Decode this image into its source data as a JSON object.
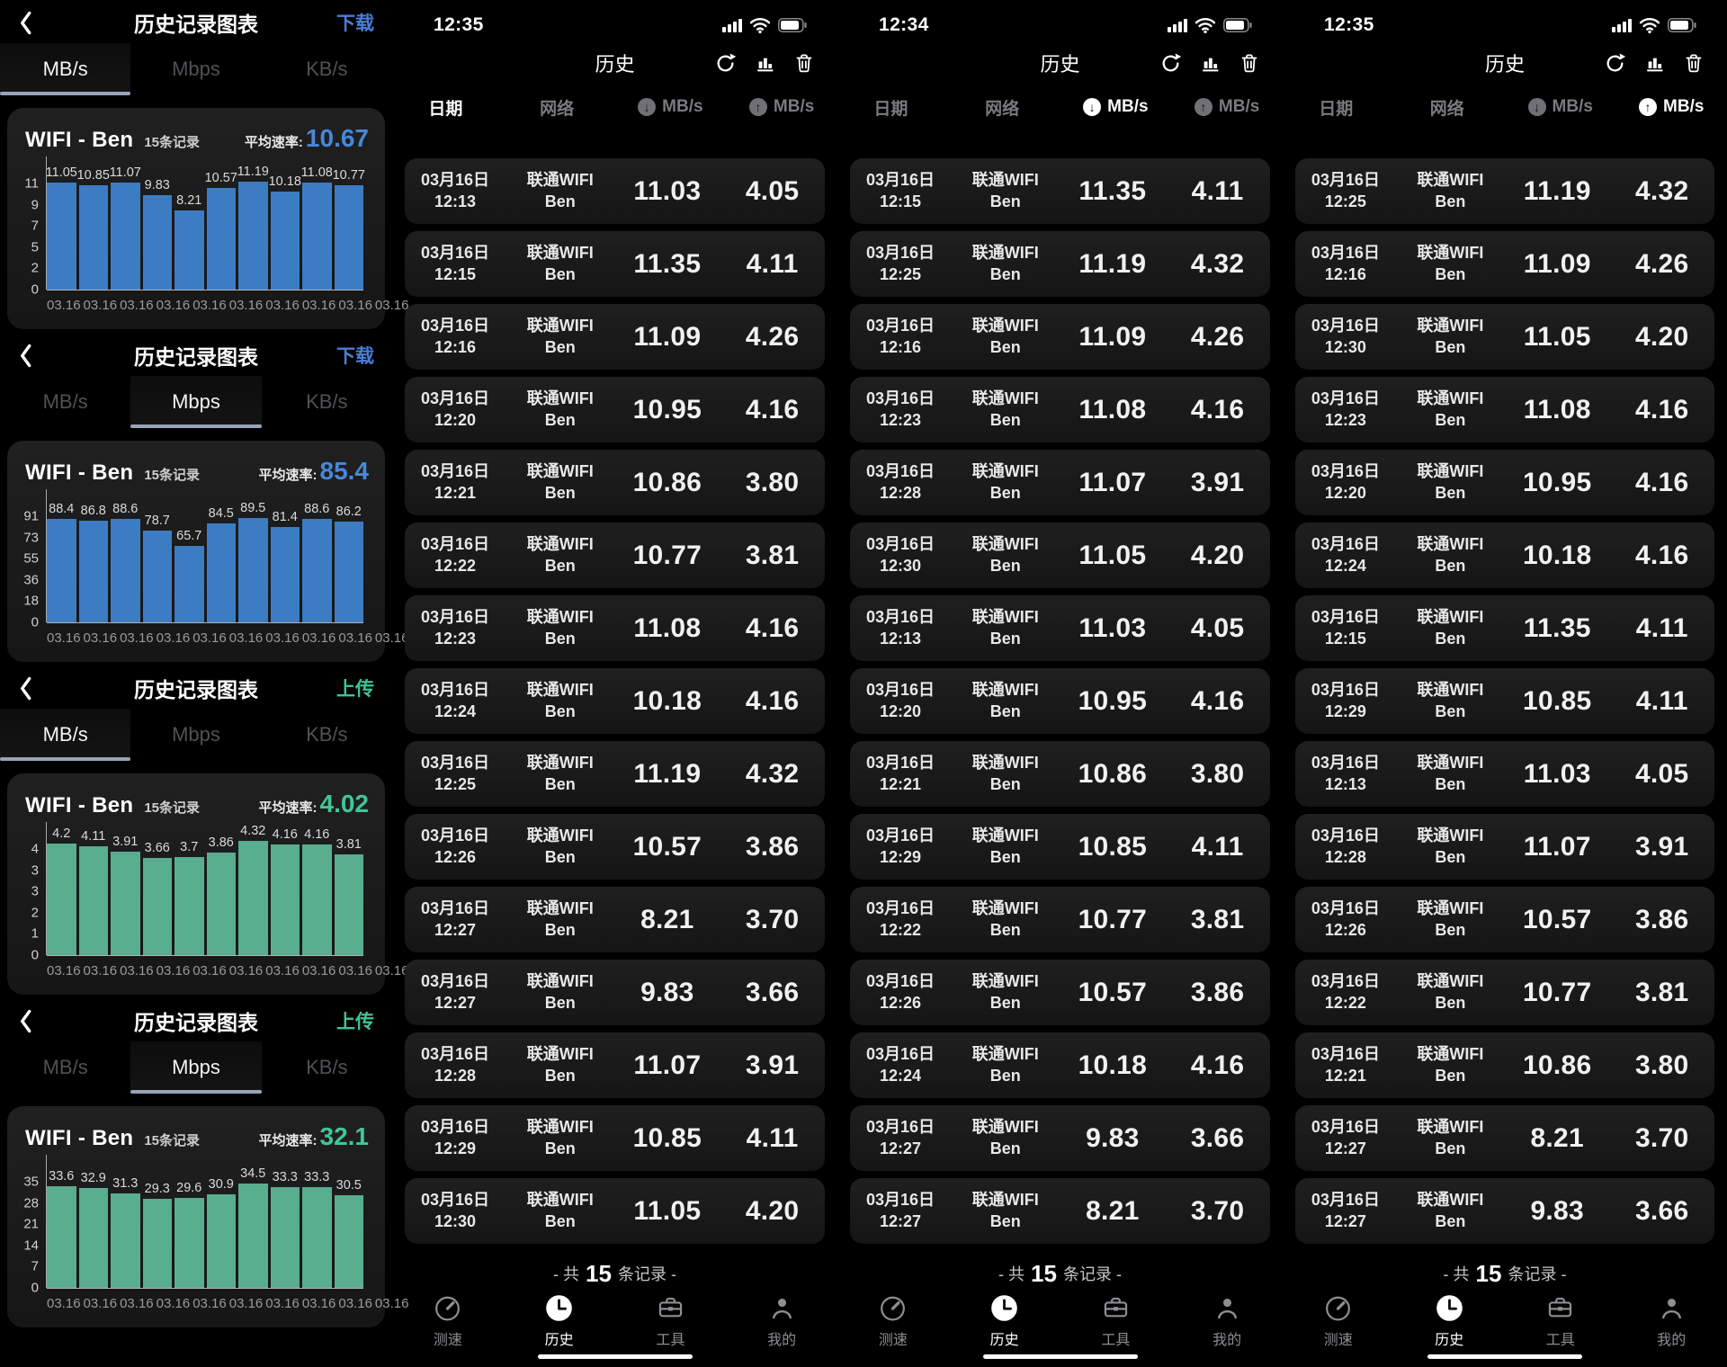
{
  "colors": {
    "bar_blue": "#3c7cc3",
    "bar_green": "#58ae8d",
    "link_blue": "#4b7fd9",
    "link_green": "#3fc393",
    "tab_underline": "#97a3b8",
    "background": "#000000"
  },
  "charts": [
    {
      "title": "历史记录图表",
      "link": "下载",
      "theme": "blue",
      "tabs": [
        "MB/s",
        "Mbps",
        "KB/s"
      ],
      "active_tab": "MB/s",
      "network": "WIFI - Ben",
      "records": "15条记录",
      "avg_label": "平均速率:",
      "avg": "10.67",
      "yticks": [
        "11",
        "9",
        "7",
        "5",
        "2",
        "0"
      ],
      "ymax": 11,
      "values": [
        11.05,
        10.85,
        11.07,
        9.83,
        8.21,
        10.57,
        11.19,
        10.18,
        11.08,
        10.77
      ],
      "labels": [
        "11.05",
        "10.85",
        "11.07",
        "9.83",
        "8.21",
        "10.57",
        "11.19",
        "10.18",
        "11.08",
        "10.77"
      ],
      "xlabels": [
        "03.16",
        "03.16",
        "03.16",
        "03.16",
        "03.16",
        "03.16",
        "03.16",
        "03.16",
        "03.16",
        "03.16"
      ]
    },
    {
      "title": "历史记录图表",
      "link": "下载",
      "theme": "blue",
      "tabs": [
        "MB/s",
        "Mbps",
        "KB/s"
      ],
      "active_tab": "Mbps",
      "network": "WIFI - Ben",
      "records": "15条记录",
      "avg_label": "平均速率:",
      "avg": "85.4",
      "yticks": [
        "91",
        "73",
        "55",
        "36",
        "18",
        "0"
      ],
      "ymax": 91,
      "values": [
        88.4,
        86.8,
        88.6,
        78.7,
        65.7,
        84.5,
        89.5,
        81.4,
        88.6,
        86.2
      ],
      "labels": [
        "88.4",
        "86.8",
        "88.6",
        "78.7",
        "65.7",
        "84.5",
        "89.5",
        "81.4",
        "88.6",
        "86.2"
      ],
      "xlabels": [
        "03.16",
        "03.16",
        "03.16",
        "03.16",
        "03.16",
        "03.16",
        "03.16",
        "03.16",
        "03.16",
        "03.16"
      ]
    },
    {
      "title": "历史记录图表",
      "link": "上传",
      "theme": "green",
      "tabs": [
        "MB/s",
        "Mbps",
        "KB/s"
      ],
      "active_tab": "MB/s",
      "network": "WIFI - Ben",
      "records": "15条记录",
      "avg_label": "平均速率:",
      "avg": "4.02",
      "yticks": [
        "4",
        "3",
        "3",
        "2",
        "1",
        "0"
      ],
      "ymax": 4,
      "values": [
        4.2,
        4.11,
        3.91,
        3.66,
        3.7,
        3.86,
        4.32,
        4.16,
        4.16,
        3.81
      ],
      "labels": [
        "4.2",
        "4.11",
        "3.91",
        "3.66",
        "3.7",
        "3.86",
        "4.32",
        "4.16",
        "4.16",
        "3.81"
      ],
      "xlabels": [
        "03.16",
        "03.16",
        "03.16",
        "03.16",
        "03.16",
        "03.16",
        "03.16",
        "03.16",
        "03.16",
        "03.16"
      ]
    },
    {
      "title": "历史记录图表",
      "link": "上传",
      "theme": "green",
      "tabs": [
        "MB/s",
        "Mbps",
        "KB/s"
      ],
      "active_tab": "Mbps",
      "network": "WIFI - Ben",
      "records": "15条记录",
      "avg_label": "平均速率:",
      "avg": "32.1",
      "yticks": [
        "35",
        "28",
        "21",
        "14",
        "7",
        "0"
      ],
      "ymax": 35,
      "values": [
        33.6,
        32.9,
        31.3,
        29.3,
        29.6,
        30.9,
        34.5,
        33.3,
        33.3,
        30.5
      ],
      "labels": [
        "33.6",
        "32.9",
        "31.3",
        "29.3",
        "29.6",
        "30.9",
        "34.5",
        "33.3",
        "33.3",
        "30.5"
      ],
      "xlabels": [
        "03.16",
        "03.16",
        "03.16",
        "03.16",
        "03.16",
        "03.16",
        "03.16",
        "03.16",
        "03.16",
        "03.16"
      ]
    }
  ],
  "panel_common": {
    "nav_title": "历史",
    "columns": {
      "date": "日期",
      "network": "网络",
      "down": "MB/s",
      "up": "MB/s"
    },
    "row_date": "03月16日",
    "net_line1": "联通WIFI",
    "net_line2": "Ben",
    "footer": {
      "prefix": "- 共",
      "count": "15",
      "suffix": "条记录 -"
    },
    "tabbar": [
      {
        "label": "测速",
        "icon": "speedometer-icon",
        "active": false
      },
      {
        "label": "历史",
        "icon": "clock-icon",
        "active": true
      },
      {
        "label": "工具",
        "icon": "briefcase-icon",
        "active": false
      },
      {
        "label": "我的",
        "icon": "person-icon",
        "active": false
      }
    ]
  },
  "panels": [
    {
      "time": "12:35",
      "sorted_by": "date",
      "rows": [
        [
          "12:13",
          "11.03",
          "4.05"
        ],
        [
          "12:15",
          "11.35",
          "4.11"
        ],
        [
          "12:16",
          "11.09",
          "4.26"
        ],
        [
          "12:20",
          "10.95",
          "4.16"
        ],
        [
          "12:21",
          "10.86",
          "3.80"
        ],
        [
          "12:22",
          "10.77",
          "3.81"
        ],
        [
          "12:23",
          "11.08",
          "4.16"
        ],
        [
          "12:24",
          "10.18",
          "4.16"
        ],
        [
          "12:25",
          "11.19",
          "4.32"
        ],
        [
          "12:26",
          "10.57",
          "3.86"
        ],
        [
          "12:27",
          "8.21",
          "3.70"
        ],
        [
          "12:27",
          "9.83",
          "3.66"
        ],
        [
          "12:28",
          "11.07",
          "3.91"
        ],
        [
          "12:29",
          "10.85",
          "4.11"
        ],
        [
          "12:30",
          "11.05",
          "4.20"
        ]
      ]
    },
    {
      "time": "12:34",
      "sorted_by": "download",
      "rows": [
        [
          "12:15",
          "11.35",
          "4.11"
        ],
        [
          "12:25",
          "11.19",
          "4.32"
        ],
        [
          "12:16",
          "11.09",
          "4.26"
        ],
        [
          "12:23",
          "11.08",
          "4.16"
        ],
        [
          "12:28",
          "11.07",
          "3.91"
        ],
        [
          "12:30",
          "11.05",
          "4.20"
        ],
        [
          "12:13",
          "11.03",
          "4.05"
        ],
        [
          "12:20",
          "10.95",
          "4.16"
        ],
        [
          "12:21",
          "10.86",
          "3.80"
        ],
        [
          "12:29",
          "10.85",
          "4.11"
        ],
        [
          "12:22",
          "10.77",
          "3.81"
        ],
        [
          "12:26",
          "10.57",
          "3.86"
        ],
        [
          "12:24",
          "10.18",
          "4.16"
        ],
        [
          "12:27",
          "9.83",
          "3.66"
        ],
        [
          "12:27",
          "8.21",
          "3.70"
        ]
      ]
    },
    {
      "time": "12:35",
      "sorted_by": "upload",
      "rows": [
        [
          "12:25",
          "11.19",
          "4.32"
        ],
        [
          "12:16",
          "11.09",
          "4.26"
        ],
        [
          "12:30",
          "11.05",
          "4.20"
        ],
        [
          "12:23",
          "11.08",
          "4.16"
        ],
        [
          "12:20",
          "10.95",
          "4.16"
        ],
        [
          "12:24",
          "10.18",
          "4.16"
        ],
        [
          "12:15",
          "11.35",
          "4.11"
        ],
        [
          "12:29",
          "10.85",
          "4.11"
        ],
        [
          "12:13",
          "11.03",
          "4.05"
        ],
        [
          "12:28",
          "11.07",
          "3.91"
        ],
        [
          "12:26",
          "10.57",
          "3.86"
        ],
        [
          "12:22",
          "10.77",
          "3.81"
        ],
        [
          "12:21",
          "10.86",
          "3.80"
        ],
        [
          "12:27",
          "8.21",
          "3.70"
        ],
        [
          "12:27",
          "9.83",
          "3.66"
        ]
      ]
    }
  ],
  "icons": {
    "back": "chevron-left-icon",
    "refresh": "refresh-icon",
    "chart": "bar-chart-icon",
    "trash": "trash-icon",
    "signal": "cell-signal-icon",
    "wifi": "wifi-icon",
    "battery": "battery-icon",
    "sort_down": "down-arrow-circle-icon",
    "sort_up": "up-arrow-circle-icon",
    "home": "home-indicator"
  }
}
